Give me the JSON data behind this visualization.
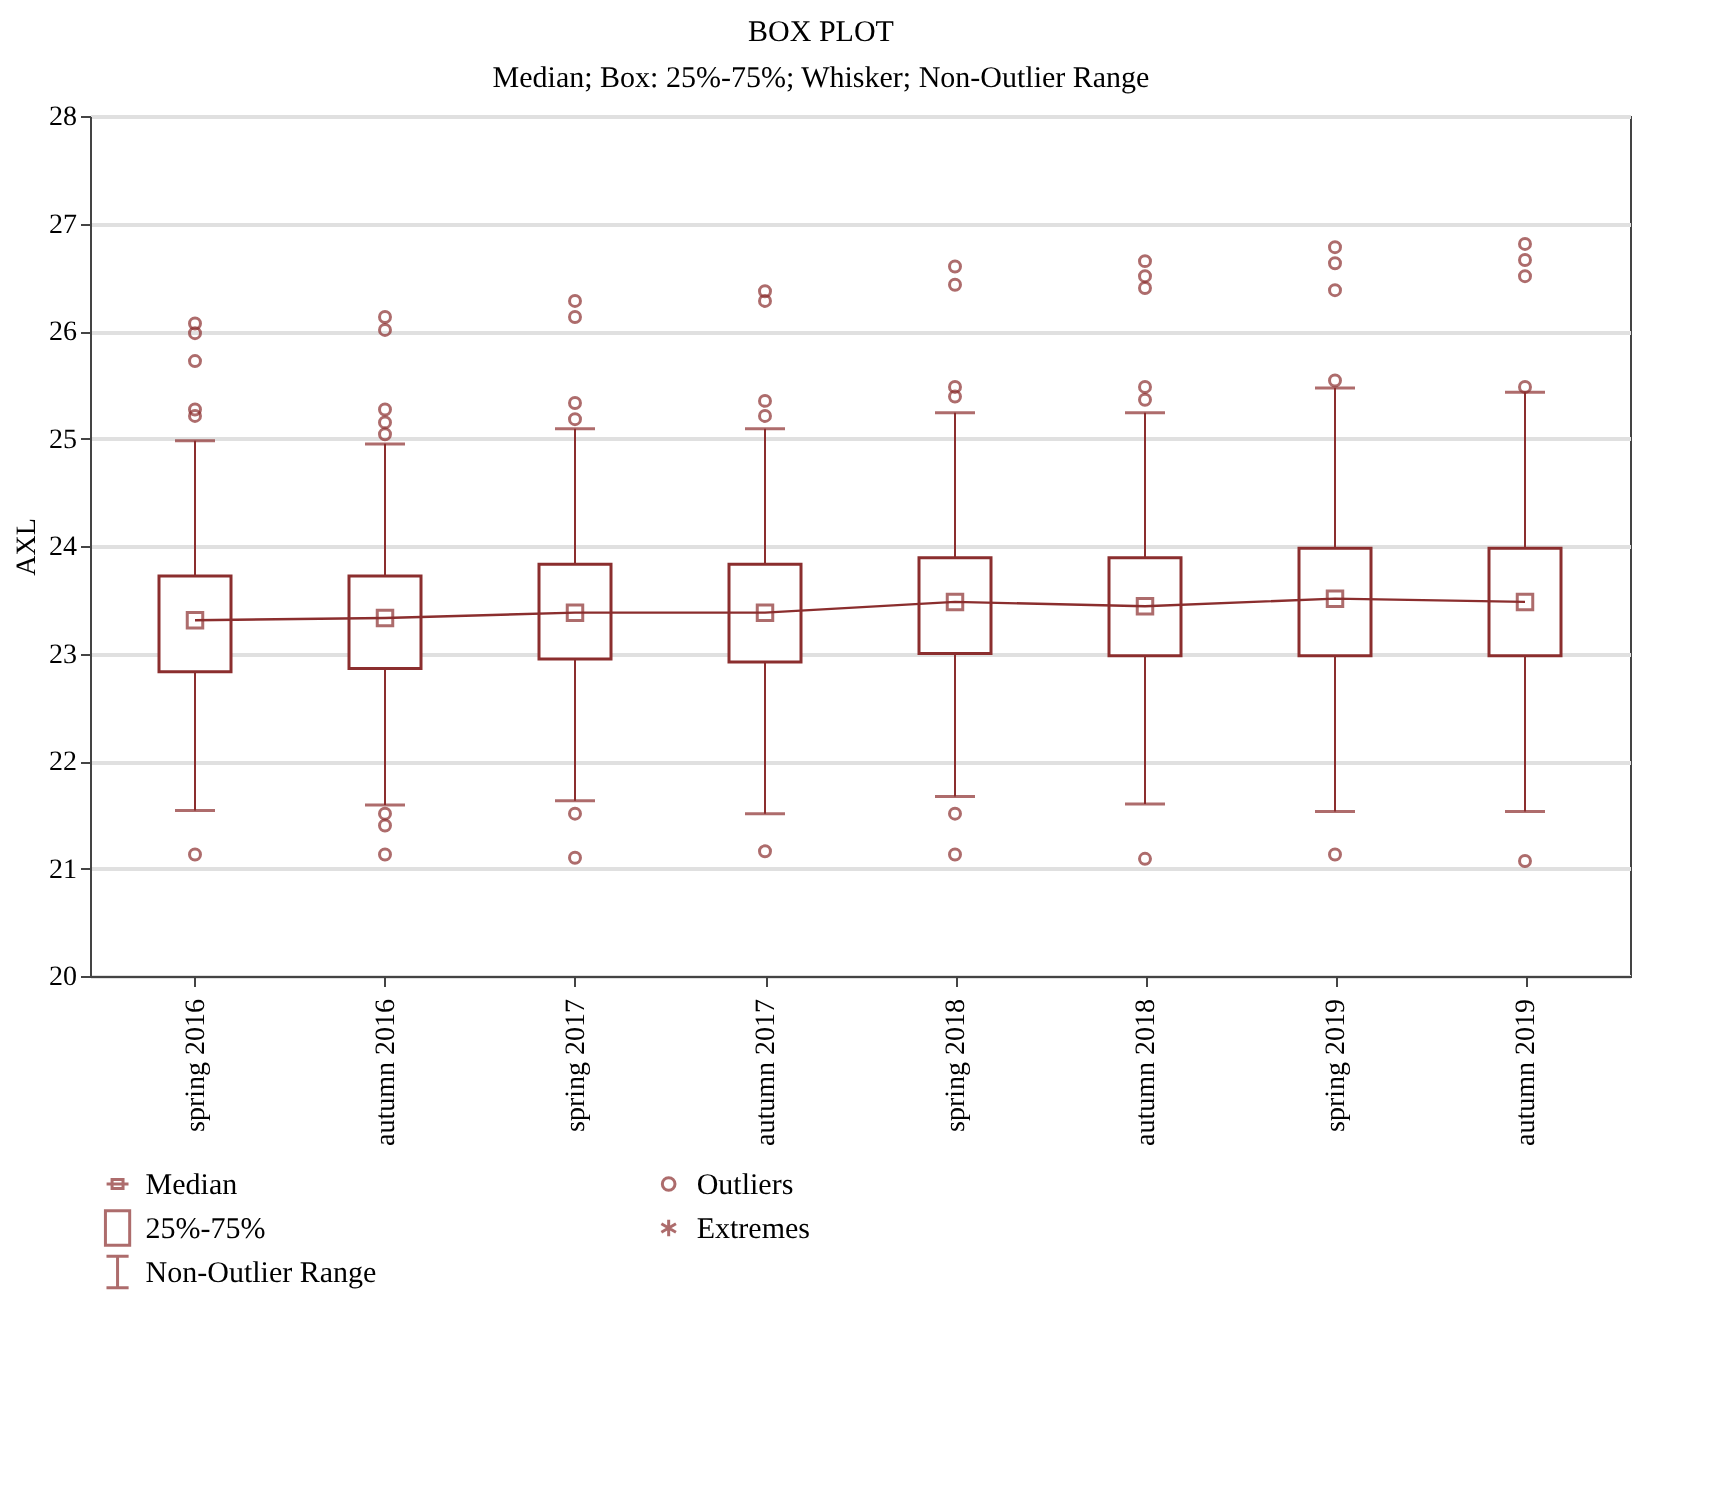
{
  "chart_data": {
    "type": "box",
    "title": "BOX PLOT",
    "subtitle": "Median; Box: 25%-75%; Whisker; Non-Outlier Range",
    "ylabel": "AXL",
    "categories": [
      "spring 2016",
      "autumn 2016",
      "spring 2017",
      "autumn 2017",
      "spring 2018",
      "autumn 2018",
      "spring 2019",
      "autumn 2019"
    ],
    "ylim": [
      20,
      28
    ],
    "yticks": [
      20,
      21,
      22,
      23,
      24,
      25,
      26,
      27,
      28
    ],
    "grid": "y",
    "legend": "bottom",
    "series": [
      {
        "name": "Median",
        "type": "line",
        "color": "#8b2e2e",
        "values": [
          23.31,
          23.33,
          23.38,
          23.38,
          23.48,
          23.44,
          23.51,
          23.48
        ]
      },
      {
        "name": "25%-75%",
        "color": "#8b2e2e",
        "boxes": [
          {
            "low": 21.54,
            "q1": 22.83,
            "median": 23.31,
            "q3": 23.72,
            "high": 24.98,
            "outliers": [
              21.13,
              25.21,
              25.27,
              25.72,
              25.98,
              26.07
            ]
          },
          {
            "low": 21.59,
            "q1": 22.86,
            "median": 23.33,
            "q3": 23.72,
            "high": 24.95,
            "outliers": [
              21.13,
              21.4,
              21.51,
              25.04,
              25.15,
              25.27,
              26.01,
              26.13
            ]
          },
          {
            "low": 21.63,
            "q1": 22.95,
            "median": 23.38,
            "q3": 23.83,
            "high": 25.09,
            "outliers": [
              21.1,
              21.51,
              25.18,
              25.33,
              26.13,
              26.28
            ]
          },
          {
            "low": 21.51,
            "q1": 22.92,
            "median": 23.38,
            "q3": 23.83,
            "high": 25.09,
            "outliers": [
              21.16,
              25.21,
              25.35,
              26.28,
              26.37
            ]
          },
          {
            "low": 21.67,
            "q1": 23.0,
            "median": 23.48,
            "q3": 23.89,
            "high": 25.24,
            "outliers": [
              21.13,
              21.51,
              25.39,
              25.48,
              26.43,
              26.6
            ]
          },
          {
            "low": 21.6,
            "q1": 22.98,
            "median": 23.44,
            "q3": 23.89,
            "high": 25.24,
            "outliers": [
              21.09,
              25.36,
              25.48,
              26.4,
              26.51,
              26.65
            ]
          },
          {
            "low": 21.53,
            "q1": 22.98,
            "median": 23.51,
            "q3": 23.98,
            "high": 25.47,
            "outliers": [
              21.13,
              25.54,
              26.38,
              26.63,
              26.78
            ]
          },
          {
            "low": 21.53,
            "q1": 22.98,
            "median": 23.48,
            "q3": 23.98,
            "high": 25.43,
            "outliers": [
              21.07,
              25.48,
              26.51,
              26.66,
              26.81
            ]
          }
        ]
      }
    ],
    "annotations": [
      "Non-Outlier Range",
      "Outliers",
      "Extremes"
    ]
  }
}
